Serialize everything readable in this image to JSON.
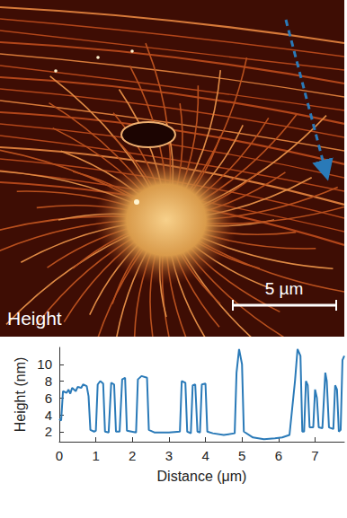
{
  "image": {
    "channel_label": "Height",
    "scale_bar_label": "5 µm"
  },
  "chart_data": {
    "type": "line",
    "x_label": "Distance (μm)",
    "y_label": "Height (nm)",
    "color": "#2a7ab8",
    "grid": false,
    "xlim": [
      0,
      7.8
    ],
    "xticks": [
      0,
      1,
      2,
      3,
      4,
      5,
      6,
      7
    ],
    "ylim": [
      0.8,
      12
    ],
    "yticks": [
      2,
      4,
      6,
      8,
      10
    ],
    "x": [
      0,
      0.05,
      0.1,
      0.2,
      0.25,
      0.3,
      0.35,
      0.45,
      0.5,
      0.6,
      0.65,
      0.75,
      0.8,
      0.85,
      0.95,
      1.0,
      1.05,
      1.12,
      1.2,
      1.25,
      1.35,
      1.42,
      1.5,
      1.55,
      1.65,
      1.72,
      1.8,
      1.85,
      2.1,
      2.15,
      2.25,
      2.4,
      2.45,
      2.6,
      3.0,
      3.3,
      3.35,
      3.45,
      3.5,
      3.6,
      3.65,
      3.72,
      3.78,
      3.85,
      3.9,
      4.0,
      4.05,
      4.2,
      4.5,
      4.8,
      4.85,
      4.92,
      5.0,
      5.05,
      5.3,
      5.6,
      5.9,
      6.1,
      6.3,
      6.45,
      6.52,
      6.6,
      6.65,
      6.7,
      6.75,
      6.8,
      6.85,
      6.95,
      7.0,
      7.05,
      7.1,
      7.2,
      7.28,
      7.32,
      7.38,
      7.5,
      7.55,
      7.6,
      7.65,
      7.7,
      7.75,
      7.8
    ],
    "values": [
      3.5,
      3.3,
      6.8,
      6.6,
      7.0,
      6.5,
      7.2,
      6.8,
      7.3,
      7.2,
      7.6,
      7.4,
      6.2,
      2.2,
      2.0,
      2.1,
      7.6,
      8.0,
      7.7,
      2.0,
      1.9,
      7.8,
      7.6,
      2.0,
      2.0,
      8.2,
      8.4,
      2.1,
      1.9,
      8.2,
      8.6,
      8.4,
      2.2,
      1.9,
      1.9,
      2.0,
      8.0,
      7.8,
      2.0,
      1.8,
      7.5,
      7.6,
      2.0,
      1.9,
      7.6,
      7.7,
      2.0,
      1.8,
      1.6,
      1.8,
      9.0,
      11.8,
      10.0,
      2.0,
      1.3,
      1.1,
      1.2,
      1.3,
      1.6,
      8.0,
      11.8,
      11.0,
      2.0,
      2.0,
      8.0,
      7.5,
      2.5,
      2.5,
      7.0,
      6.0,
      2.5,
      2.4,
      9.0,
      8.0,
      2.5,
      2.3,
      7.5,
      7.0,
      2.0,
      2.2,
      10.5,
      11.0
    ]
  }
}
